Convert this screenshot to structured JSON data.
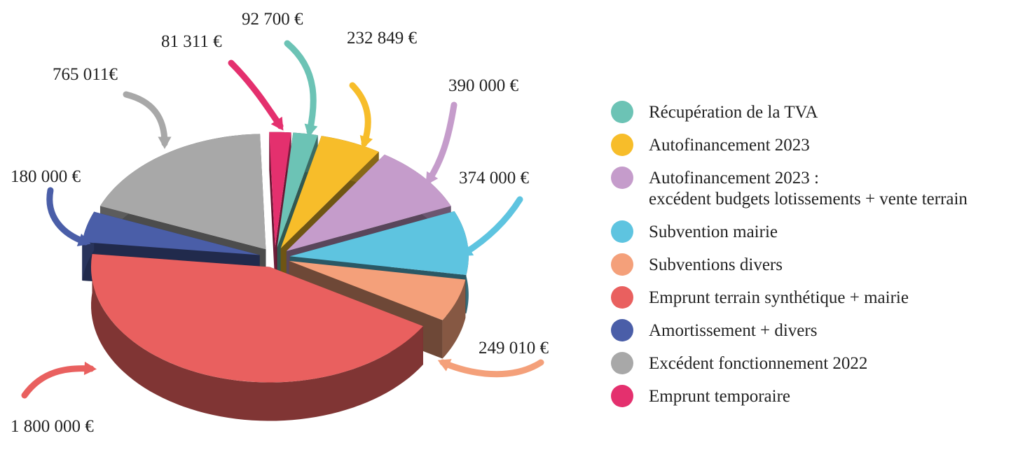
{
  "chart_data": {
    "type": "pie",
    "categories": [
      "Récupération de la TVA",
      "Autofinancement 2023",
      "Autofinancement 2023 :\nexcédent budgets lotissements + vente terrain",
      "Subvention mairie",
      "Subventions divers",
      "Emprunt terrain synthétique + mairie",
      "Amortissement + divers",
      "Excédent fonctionnement 2022",
      "Emprunt temporaire"
    ],
    "values": [
      92700,
      232849,
      390000,
      374000,
      249010,
      1800000,
      180000,
      765011,
      81311
    ],
    "value_labels": [
      "92 700 €",
      "232 849 €",
      "390 000 €",
      "374 000 €",
      "249 010 €",
      "1 800 000 €",
      "180 000 €",
      "765 011€",
      "81 311 €"
    ],
    "colors": [
      "#6cc3b5",
      "#f7bd2a",
      "#c59ccb",
      "#5ec4e0",
      "#f4a07a",
      "#e9605f",
      "#4a5ea8",
      "#a8a8a8",
      "#e4306e"
    ],
    "legend": "right"
  }
}
